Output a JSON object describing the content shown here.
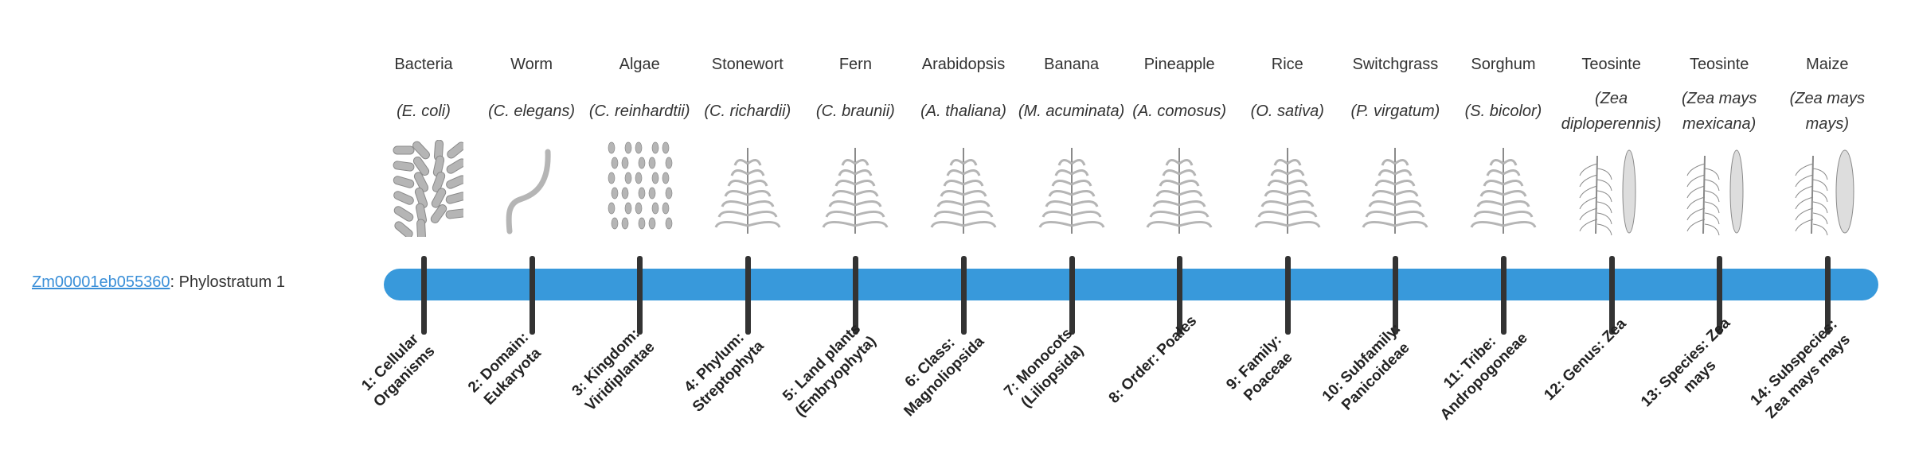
{
  "gene": {
    "id": "Zm00001eb055360",
    "separator": ":",
    "label": " Phylostratum 1"
  },
  "colors": {
    "bar": "#3899db",
    "tick": "#333333",
    "link": "#3a8fd8"
  },
  "strata": [
    {
      "common": "Bacteria",
      "sci": "(E. coli)",
      "rank": "1: Cellular Organisms",
      "icon": "bacteria-icon"
    },
    {
      "common": "Worm",
      "sci": "(C. elegans)",
      "rank": "2: Domain: Eukaryota",
      "icon": "worm-icon"
    },
    {
      "common": "Algae",
      "sci": "(C. reinhardtii)",
      "rank": "3: Kingdom: Viridiplantae",
      "icon": "algae-icon"
    },
    {
      "common": "Stonewort",
      "sci": "(C. richardii)",
      "rank": "4: Phylum: Streptophyta",
      "icon": "stonewort-icon"
    },
    {
      "common": "Fern",
      "sci": "(C. braunii)",
      "rank": "5: Land plants (Embryophyta)",
      "icon": "fern-icon"
    },
    {
      "common": "Arabidopsis",
      "sci": "(A. thaliana)",
      "rank": "6: Class: Magnoliopsida",
      "icon": "arabidopsis-icon"
    },
    {
      "common": "Banana",
      "sci": "(M. acuminata)",
      "rank": "7: Monocots (Liliopsida)",
      "icon": "banana-icon"
    },
    {
      "common": "Pineapple",
      "sci": "(A. comosus)",
      "rank": "8: Order: Poales",
      "icon": "pineapple-icon"
    },
    {
      "common": "Rice",
      "sci": "(O. sativa)",
      "rank": "9: Family: Poaceae",
      "icon": "rice-icon"
    },
    {
      "common": "Switchgrass",
      "sci": "(P. virgatum)",
      "rank": "10: Subfamily: Panicoideae",
      "icon": "switchgrass-icon"
    },
    {
      "common": "Sorghum",
      "sci": "(S. bicolor)",
      "rank": "11: Tribe: Andropogoneae",
      "icon": "sorghum-icon"
    },
    {
      "common": "Teosinte",
      "sci": "(Zea diploperennis)",
      "rank": "12: Genus: Zea",
      "icon": "teosinte-icon"
    },
    {
      "common": "Teosinte",
      "sci": "(Zea mays mexicana)",
      "rank": "13: Species: Zea mays",
      "icon": "teosinte-icon"
    },
    {
      "common": "Maize",
      "sci": "(Zea mays mays)",
      "rank": "14: Subspecies: Zea mays mays",
      "icon": "maize-icon"
    }
  ]
}
